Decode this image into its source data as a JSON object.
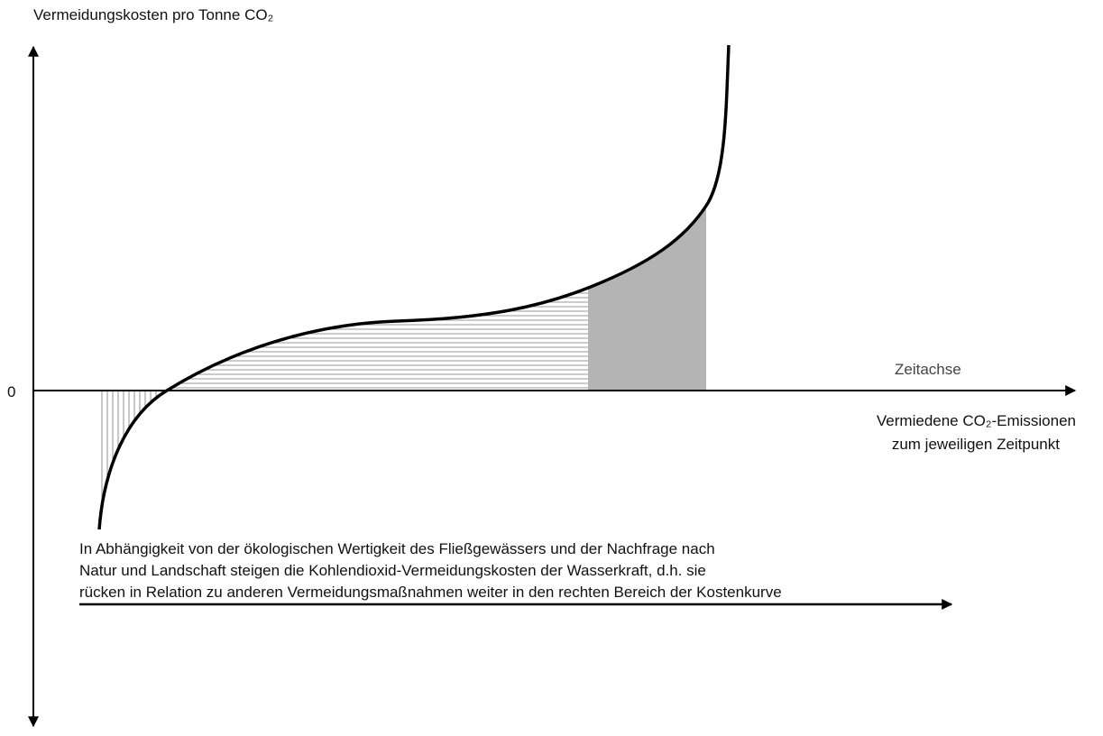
{
  "y_axis_label": "Vermeidungskosten pro Tonne CO₂",
  "zero_label": "0",
  "x_axis_label": "Zeitachse",
  "curve_label": [
    "Vermiedene CO₂-Emissionen",
    "zum jeweiligen Zeitpunkt"
  ],
  "description": [
    "In Abhängigkeit von der ökologischen Wertigkeit des Fließgewässers und der Nachfrage nach",
    "Natur und Landschaft steigen die Kohlendioxid-Vermeidungskosten der Wasserkraft, d.h. sie",
    "rücken in Relation zu anderen Vermeidungsmaßnahmen weiter in den rechten Bereich der Kostenkurve"
  ]
}
